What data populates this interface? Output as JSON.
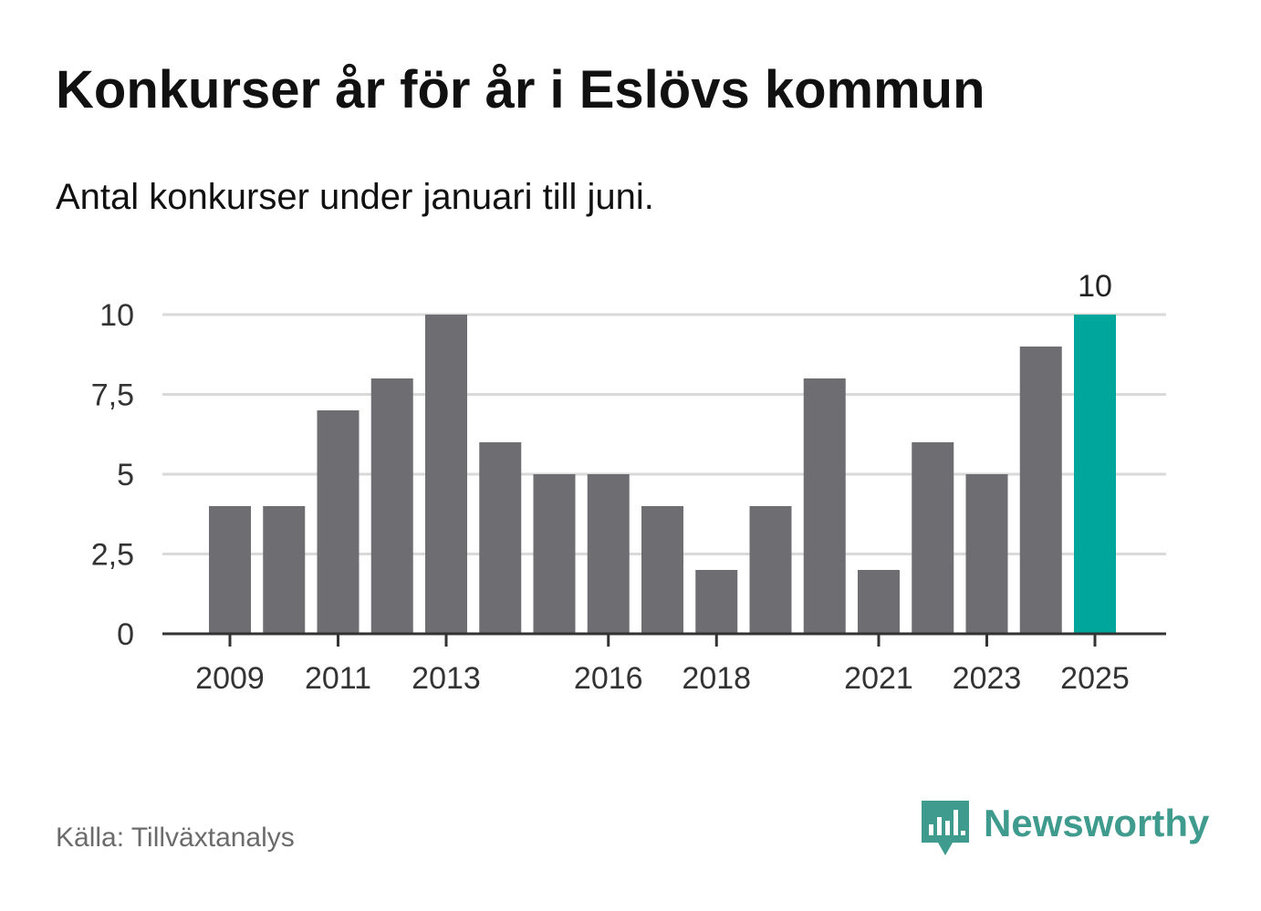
{
  "header": {
    "title": "Konkurser år för år i Eslövs kommun",
    "subtitle": "Antal konkurser under januari till juni."
  },
  "footer": {
    "source": "Källa: Tillväxtanalys",
    "brand": "Newsworthy"
  },
  "colors": {
    "bar": "#6e6d72",
    "highlight": "#00a69c",
    "grid": "#d9d9d9",
    "axis": "#333333",
    "brand": "#3f9b8d"
  },
  "chart_data": {
    "type": "bar",
    "categories": [
      "2009",
      "2010",
      "2011",
      "2012",
      "2013",
      "2014",
      "2015",
      "2016",
      "2017",
      "2018",
      "2019",
      "2020",
      "2021",
      "2022",
      "2023",
      "2024",
      "2025"
    ],
    "values": [
      4,
      4,
      7,
      8,
      10,
      6,
      5,
      5,
      4,
      2,
      4,
      8,
      2,
      6,
      5,
      9,
      10
    ],
    "x_tick_labels": [
      "2009",
      "2011",
      "2013",
      "2016",
      "2018",
      "2021",
      "2023",
      "2025"
    ],
    "y_ticks": [
      0,
      2.5,
      5,
      7.5,
      10
    ],
    "y_tick_labels": [
      "0",
      "2,5",
      "5",
      "7,5",
      "10"
    ],
    "ylim": [
      0,
      10
    ],
    "highlight_category": "2025",
    "data_labels": [
      {
        "category": "2025",
        "label": "10"
      }
    ],
    "grid": true,
    "legend": "none"
  }
}
